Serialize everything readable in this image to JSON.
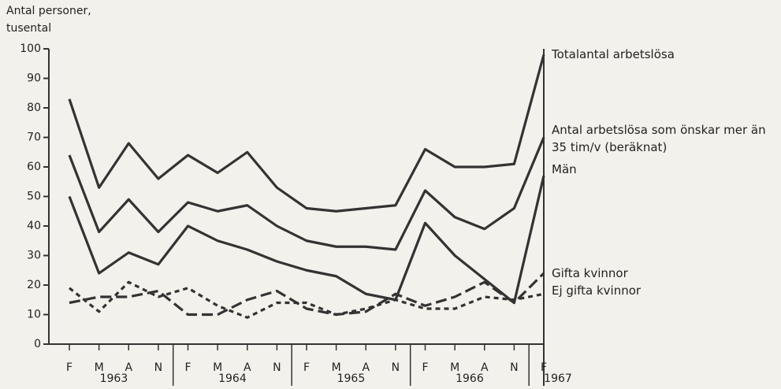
{
  "chart_data": {
    "type": "line",
    "ylabel": [
      "Antal personer,",
      "tusental"
    ],
    "categories": [
      "F",
      "M",
      "A",
      "N",
      "F",
      "M",
      "A",
      "N",
      "F",
      "M",
      "A",
      "N",
      "F",
      "M",
      "A",
      "N",
      "F"
    ],
    "year_labels": [
      "1963",
      "1964",
      "1965",
      "1966",
      "1967"
    ],
    "ylim": [
      0,
      100
    ],
    "yticks": [
      0,
      10,
      20,
      30,
      40,
      50,
      60,
      70,
      80,
      90,
      100
    ],
    "series": [
      {
        "name": "Totalantal arbetslösa",
        "color": "#333333",
        "style": "solid",
        "values": [
          83,
          53,
          68,
          56,
          64,
          58,
          65,
          53,
          46,
          45,
          46,
          47,
          66,
          60,
          60,
          61,
          98
        ]
      },
      {
        "name": "Antal arbetslösa som önskar mer än 35 tim/v (beräknat)",
        "color": "#333333",
        "style": "solid",
        "values": [
          64,
          38,
          49,
          38,
          48,
          45,
          47,
          40,
          35,
          33,
          33,
          32,
          52,
          43,
          39,
          46,
          70
        ]
      },
      {
        "name": "Män",
        "color": "#333333",
        "style": "solid",
        "values": [
          50,
          24,
          31,
          27,
          40,
          35,
          32,
          28,
          25,
          23,
          17,
          15,
          41,
          30,
          22,
          14,
          57
        ]
      },
      {
        "name": "Gifta kvinnor",
        "color": "#333333",
        "style": "long",
        "values": [
          14,
          16,
          16,
          18,
          10,
          10,
          15,
          18,
          12,
          10,
          11,
          17,
          13,
          16,
          21,
          14,
          24
        ]
      },
      {
        "name": "Ej gifta kvinnor",
        "color": "#333333",
        "style": "short",
        "values": [
          19,
          11,
          21,
          16,
          19,
          13,
          9,
          14,
          14,
          10,
          12,
          15,
          12,
          12,
          16,
          15,
          17
        ]
      }
    ]
  }
}
